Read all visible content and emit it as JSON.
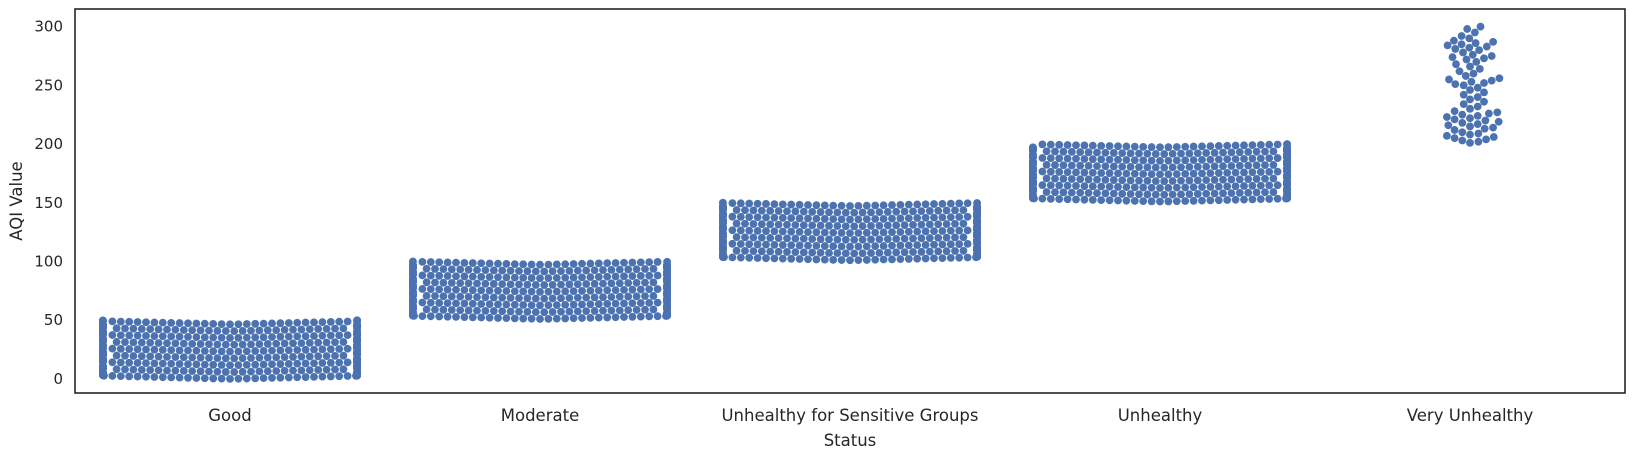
{
  "chart_data": {
    "type": "scatter",
    "subtype": "swarm",
    "title": "",
    "xlabel": "Status",
    "ylabel": "AQI Value",
    "ylim": [
      -12,
      315
    ],
    "yticks": [
      0,
      50,
      100,
      150,
      200,
      250,
      300
    ],
    "grid": false,
    "legend": "none",
    "color": "#4c72b0",
    "categories": [
      "Good",
      "Moderate",
      "Unhealthy for Sensitive Groups",
      "Unhealthy",
      "Very Unhealthy"
    ],
    "groups": [
      {
        "category": "Good",
        "min": 0,
        "max": 50,
        "count": 560
      },
      {
        "category": "Moderate",
        "min": 51,
        "max": 100,
        "count": 560
      },
      {
        "category": "Unhealthy for Sensitive Groups",
        "min": 101,
        "max": 150,
        "count": 560
      },
      {
        "category": "Unhealthy",
        "min": 151,
        "max": 200,
        "count": 560
      },
      {
        "category": "Very Unhealthy",
        "values": [
          201,
          202,
          203,
          204,
          205,
          206,
          207,
          208,
          209,
          210,
          212,
          213,
          214,
          215,
          216,
          217,
          218,
          219,
          220,
          221,
          222,
          223,
          224,
          225,
          226,
          227,
          228,
          230,
          232,
          234,
          236,
          238,
          240,
          242,
          244,
          246,
          248,
          250,
          251,
          252,
          253,
          254,
          255,
          256,
          258,
          260,
          262,
          264,
          266,
          268,
          270,
          272,
          273,
          274,
          275,
          276,
          278,
          280,
          281,
          282,
          283,
          284,
          285,
          286,
          287,
          288,
          290,
          292,
          295,
          298,
          300
        ]
      }
    ]
  }
}
